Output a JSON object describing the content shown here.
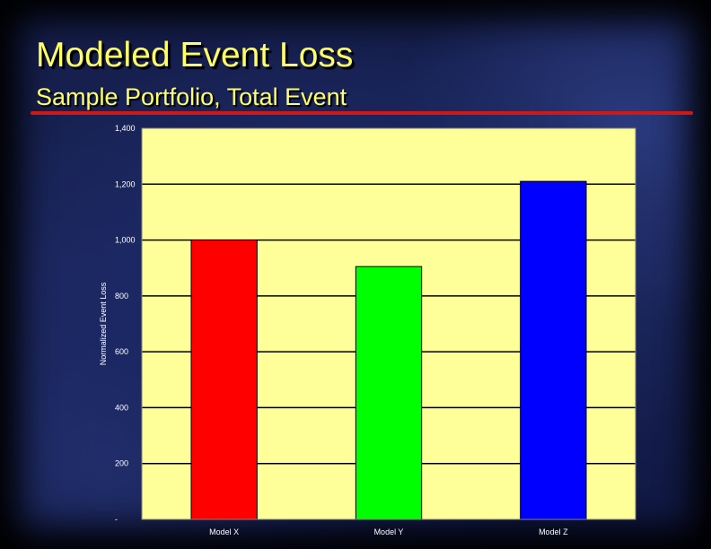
{
  "slide": {
    "title": "Modeled Event Loss",
    "subtitle": "Sample Portfolio, Total Event"
  },
  "colors": {
    "title_text": "#ffff66",
    "rule": "#d01818",
    "plot_background": "#ffff99"
  },
  "chart_data": {
    "type": "bar",
    "title": "",
    "xlabel": "",
    "ylabel": "Normalized Event Loss",
    "categories": [
      "Model X",
      "Model Y",
      "Model Z"
    ],
    "values": [
      1000,
      905,
      1210
    ],
    "bar_colors": [
      "#ff0000",
      "#00ff00",
      "#0000ff"
    ],
    "ylim": [
      0,
      1400
    ],
    "yticks": [
      0,
      200,
      400,
      600,
      800,
      1000,
      1200,
      1400
    ],
    "ytick_labels": [
      "-",
      "200",
      "400",
      "600",
      "800",
      "1,000",
      "1,200",
      "1,400"
    ],
    "grid": true,
    "legend": "none"
  }
}
